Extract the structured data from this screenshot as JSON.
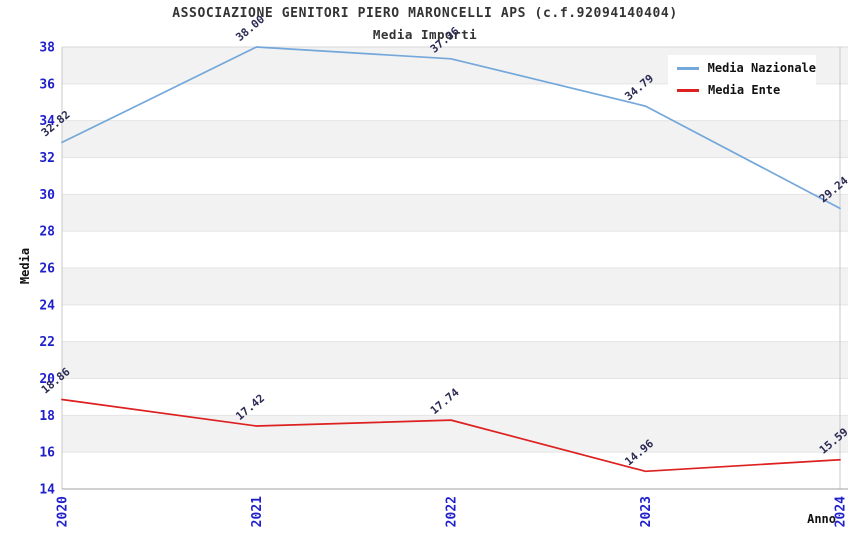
{
  "header": {
    "title": "ASSOCIAZIONE GENITORI PIERO MARONCELLI APS (c.f.92094140404)",
    "subtitle": "Media Importi"
  },
  "chart_data": {
    "type": "line",
    "x": [
      2020,
      2021,
      2022,
      2023,
      2024
    ],
    "xlabel": "Anno",
    "ylabel": "Media",
    "ylim": [
      14,
      38
    ],
    "ytick_step": 2,
    "grid": "horizontal gridlines with alternating gray/white bands",
    "legend_position": "top-right",
    "series": [
      {
        "name": "Media Nazionale",
        "color": "#74a7da",
        "values": [
          32.82,
          38.0,
          37.36,
          34.79,
          29.24
        ]
      },
      {
        "name": "Media Ente",
        "color": "#dd2020",
        "values": [
          18.86,
          17.42,
          17.74,
          14.96,
          15.59
        ]
      }
    ],
    "point_labels_decimals": 2
  },
  "colors": {
    "tick_label": "#1f1fcc",
    "annotation": "#2b2b55",
    "band_gray": "#f2f2f2",
    "band_white": "#ffffff",
    "gridline": "#e4e4e4",
    "axis_bottom": "#a0a0a0",
    "axis_left": "#c8c8c8",
    "axis_top": "#d8d8d8",
    "title_text": "#333333"
  }
}
